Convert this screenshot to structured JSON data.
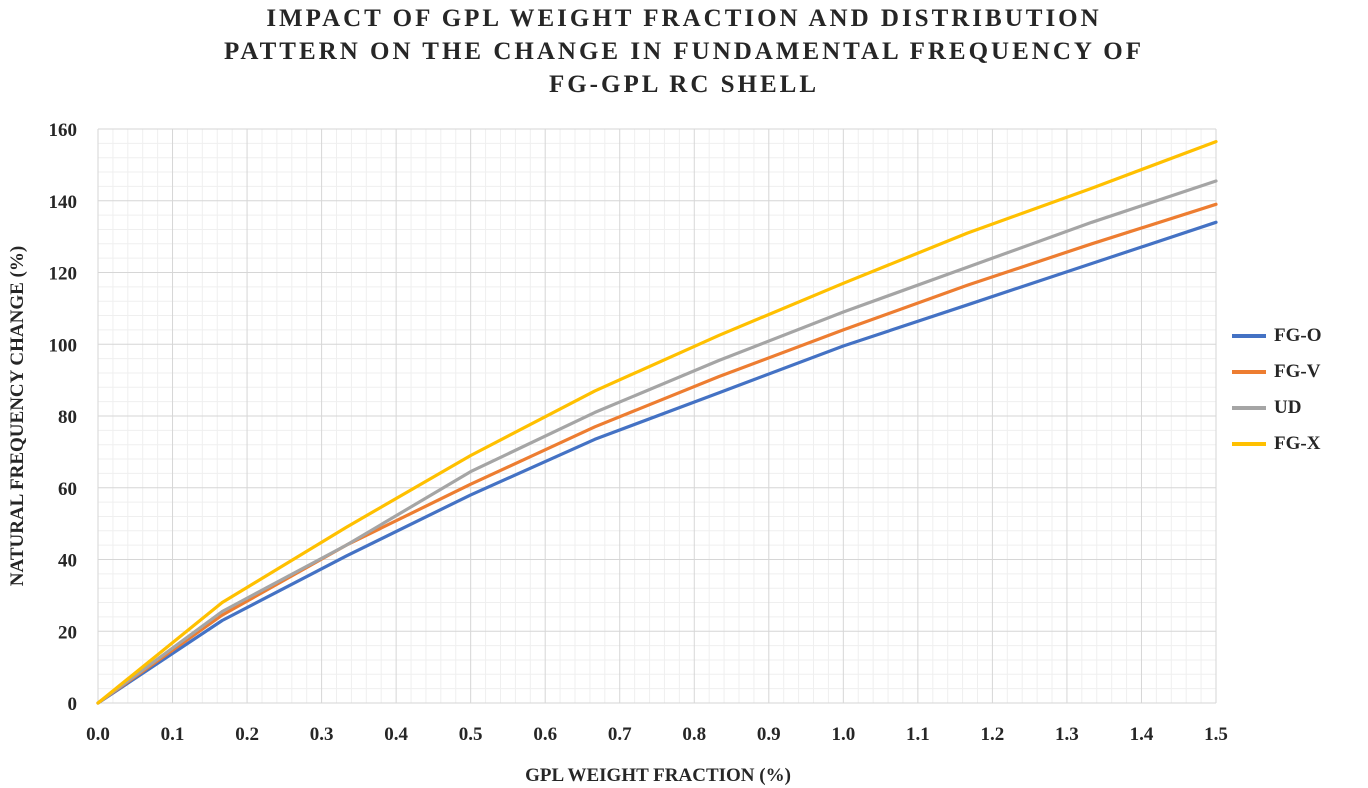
{
  "title_lines": [
    "IMPACT OF GPL WEIGHT FRACTION AND DISTRIBUTION",
    "PATTERN ON THE CHANGE IN FUNDAMENTAL FREQUENCY OF",
    "FG-GPL RC SHELL"
  ],
  "chart_data": {
    "type": "line",
    "title": "IMPACT OF GPL WEIGHT FRACTION AND DISTRIBUTION PATTERN ON THE CHANGE IN FUNDAMENTAL FREQUENCY OF FG-GPL RC SHELL",
    "xlabel": "GPL WEIGHT FRACTION (%)",
    "ylabel": "NATURAL FREQUENCY CHANGE (%)",
    "xlim": [
      0,
      1.5
    ],
    "ylim": [
      0,
      160
    ],
    "xticks": [
      "0.0",
      "0.1",
      "0.2",
      "0.3",
      "0.4",
      "0.5",
      "0.6",
      "0.7",
      "0.8",
      "0.9",
      "1.0",
      "1.1",
      "1.2",
      "1.3",
      "1.4",
      "1.5"
    ],
    "yticks": [
      "0",
      "20",
      "40",
      "60",
      "80",
      "100",
      "120",
      "140",
      "160"
    ],
    "grid": true,
    "legend_position": "right",
    "x": [
      0,
      0.1667,
      0.3333,
      0.5,
      0.6667,
      0.8333,
      1.0,
      1.1667,
      1.3333,
      1.5
    ],
    "series": [
      {
        "name": "FG-O",
        "color": "#4472C4",
        "values": [
          0,
          23,
          41,
          58,
          73.5,
          86.5,
          99.5,
          111,
          122.5,
          134
        ]
      },
      {
        "name": "FG-V",
        "color": "#ED7D31",
        "values": [
          0,
          24.5,
          44,
          61,
          77,
          91,
          104,
          116.5,
          128,
          139
        ]
      },
      {
        "name": "UD",
        "color": "#A5A5A5",
        "values": [
          0,
          25.5,
          44,
          64.5,
          81,
          95.5,
          109,
          121.5,
          134,
          145.5
        ]
      },
      {
        "name": "FG-X",
        "color": "#FFC000",
        "values": [
          0,
          28,
          49,
          69,
          87,
          102.5,
          117,
          131,
          143.5,
          156.5
        ]
      }
    ]
  }
}
